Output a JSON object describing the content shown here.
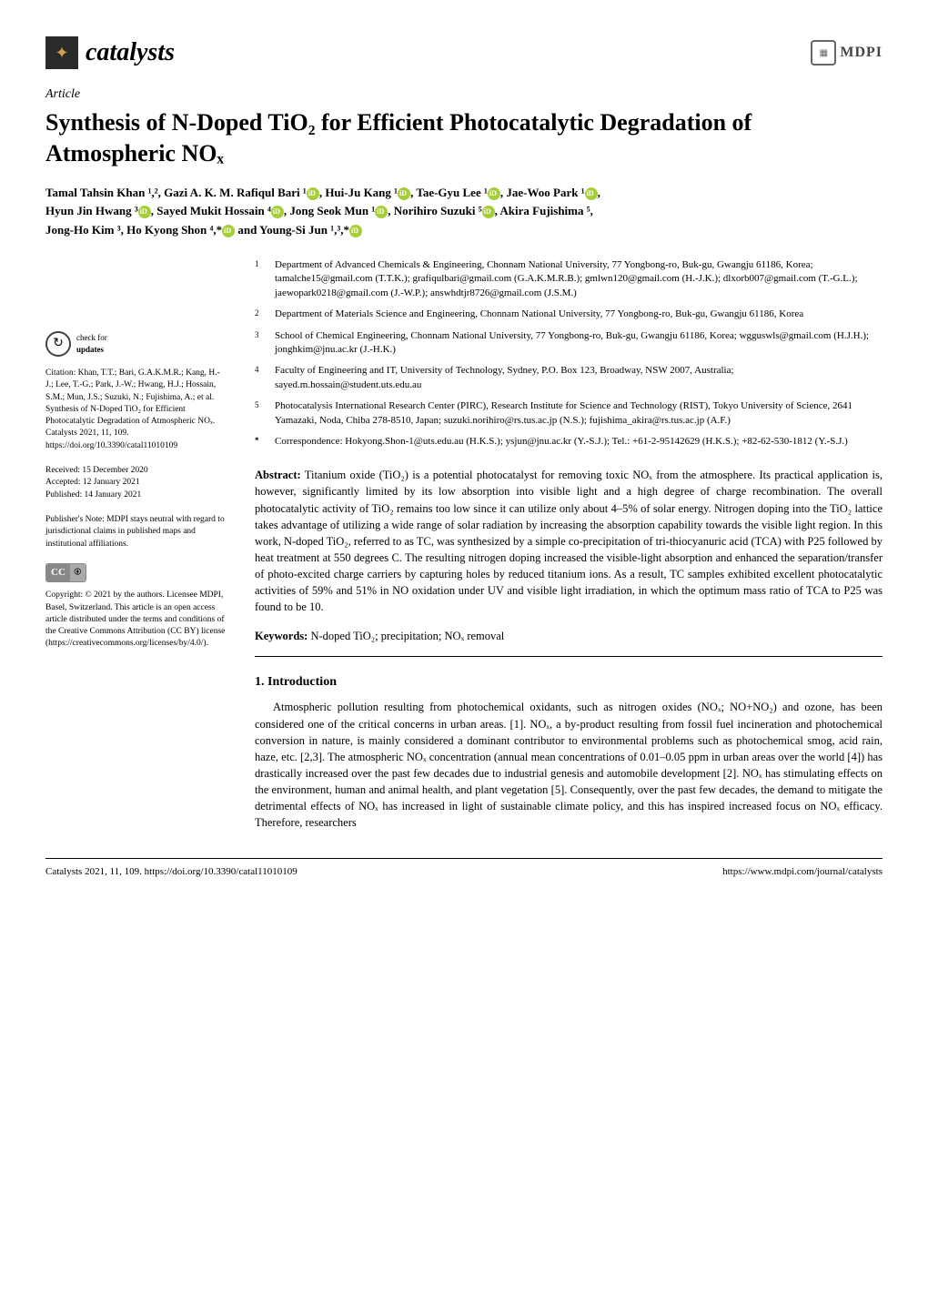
{
  "journal": {
    "name": "catalysts",
    "publisher": "MDPI"
  },
  "article_type": "Article",
  "title": "Synthesis of N-Doped TiO₂ for Efficient Photocatalytic Degradation of Atmospheric NOₓ",
  "authors_line1": "Tamal Tahsin Khan ¹,², Gazi A. K. M. Rafiqul Bari ¹",
  "authors_line1b": ", Hui-Ju Kang ¹",
  "authors_line1c": ", Tae-Gyu Lee ¹",
  "authors_line1d": ", Jae-Woo Park ¹",
  "authors_line1e": ",",
  "authors_line2": "Hyun Jin Hwang ³",
  "authors_line2b": ", Sayed Mukit Hossain ⁴",
  "authors_line2c": ", Jong Seok Mun ¹",
  "authors_line2d": ", Norihiro Suzuki ⁵",
  "authors_line2e": ", Akira Fujishima ⁵,",
  "authors_line3": "Jong-Ho Kim ³, Ho Kyong Shon ⁴,*",
  "authors_line3b": " and Young-Si Jun ¹,³,*",
  "affiliations": [
    {
      "num": "1",
      "text": "Department of Advanced Chemicals & Engineering, Chonnam National University, 77 Yongbong-ro, Buk-gu, Gwangju 61186, Korea; tamalche15@gmail.com (T.T.K.); grafiqulbari@gmail.com (G.A.K.M.R.B.); gmlwn120@gmail.com (H.-J.K.); dlxorb007@gmail.com (T.-G.L.); jaewopark0218@gmail.com (J.-W.P.); answhdtjr8726@gmail.com (J.S.M.)"
    },
    {
      "num": "2",
      "text": "Department of Materials Science and Engineering, Chonnam National University, 77 Yongbong-ro, Buk-gu, Gwangju 61186, Korea"
    },
    {
      "num": "3",
      "text": "School of Chemical Engineering, Chonnam National University, 77 Yongbong-ro, Buk-gu, Gwangju 61186, Korea; wgguswls@gmail.com (H.J.H.); jonghkim@jnu.ac.kr (J.-H.K.)"
    },
    {
      "num": "4",
      "text": "Faculty of Engineering and IT, University of Technology, Sydney, P.O. Box 123, Broadway, NSW 2007, Australia; sayed.m.hossain@student.uts.edu.au"
    },
    {
      "num": "5",
      "text": "Photocatalysis International Research Center (PIRC), Research Institute for Science and Technology (RIST), Tokyo University of Science, 2641 Yamazaki, Noda, Chiba 278-8510, Japan; suzuki.norihiro@rs.tus.ac.jp (N.S.); fujishima_akira@rs.tus.ac.jp (A.F.)"
    },
    {
      "num": "*",
      "text": "Correspondence: Hokyong.Shon-1@uts.edu.au (H.K.S.); ysjun@jnu.ac.kr (Y.-S.J.); Tel.: +61-2-95142629 (H.K.S.); +82-62-530-1812 (Y.-S.J.)"
    }
  ],
  "check_updates": {
    "line1": "check for",
    "line2": "updates"
  },
  "citation": "Citation: Khan, T.T.; Bari, G.A.K.M.R.; Kang, H.-J.; Lee, T.-G.; Park, J.-W.; Hwang, H.J.; Hossain, S.M.; Mun, J.S.; Suzuki, N.; Fujishima, A.; et al. Synthesis of N-Doped TiO₂ for Efficient Photocatalytic Degradation of Atmospheric NOₓ. Catalysts 2021, 11, 109. https://doi.org/10.3390/catal11010109",
  "dates": {
    "received": "Received: 15 December 2020",
    "accepted": "Accepted: 12 January 2021",
    "published": "Published: 14 January 2021"
  },
  "publishers_note": "Publisher's Note: MDPI stays neutral with regard to jurisdictional claims in published maps and institutional affiliations.",
  "copyright": "Copyright: © 2021 by the authors. Licensee MDPI, Basel, Switzerland. This article is an open access article distributed under the terms and conditions of the Creative Commons Attribution (CC BY) license (https://creativecommons.org/licenses/by/4.0/).",
  "abstract_label": "Abstract:",
  "abstract": "Titanium oxide (TiO₂) is a potential photocatalyst for removing toxic NOₓ from the atmosphere. Its practical application is, however, significantly limited by its low absorption into visible light and a high degree of charge recombination. The overall photocatalytic activity of TiO₂ remains too low since it can utilize only about 4–5% of solar energy. Nitrogen doping into the TiO₂ lattice takes advantage of utilizing a wide range of solar radiation by increasing the absorption capability towards the visible light region. In this work, N-doped TiO₂, referred to as TC, was synthesized by a simple co-precipitation of tri-thiocyanuric acid (TCA) with P25 followed by heat treatment at 550 degrees C. The resulting nitrogen doping increased the visible-light absorption and enhanced the separation/transfer of photo-excited charge carriers by capturing holes by reduced titanium ions. As a result, TC samples exhibited excellent photocatalytic activities of 59% and 51% in NO oxidation under UV and visible light irradiation, in which the optimum mass ratio of TCA to P25 was found to be 10.",
  "keywords_label": "Keywords:",
  "keywords": "N-doped TiO₂; precipitation; NOₓ removal",
  "section1_title": "1. Introduction",
  "intro_text": "Atmospheric pollution resulting from photochemical oxidants, such as nitrogen oxides (NOₓ; NO+NO₂) and ozone, has been considered one of the critical concerns in urban areas. [1]. NOₓ, a by-product resulting from fossil fuel incineration and photochemical conversion in nature, is mainly considered a dominant contributor to environmental problems such as photochemical smog, acid rain, haze, etc. [2,3]. The atmospheric NOₓ concentration (annual mean concentrations of 0.01–0.05 ppm in urban areas over the world [4]) has drastically increased over the past few decades due to industrial genesis and automobile development [2]. NOₓ has stimulating effects on the environment, human and animal health, and plant vegetation [5]. Consequently, over the past few decades, the demand to mitigate the detrimental effects of NOₓ has increased in light of sustainable climate policy, and this has inspired increased focus on NOₓ efficacy. Therefore, researchers",
  "footer": {
    "left": "Catalysts 2021, 11, 109. https://doi.org/10.3390/catal11010109",
    "right": "https://www.mdpi.com/journal/catalysts"
  },
  "colors": {
    "text": "#000000",
    "background": "#ffffff",
    "orcid": "#a6ce39",
    "logo_bg": "#2a2a2a",
    "logo_accent": "#d4a64a",
    "link": "#0066aa"
  },
  "typography": {
    "body_font": "Palatino Linotype",
    "title_size_pt": 20,
    "body_size_pt": 10,
    "sidebar_size_pt": 7.5
  }
}
